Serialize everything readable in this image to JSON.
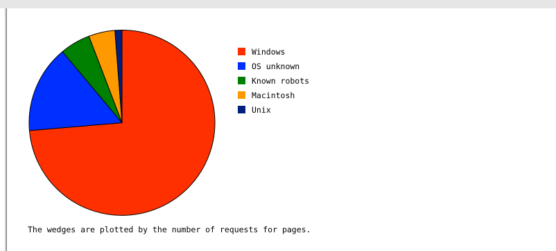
{
  "chart_data": {
    "type": "pie",
    "categories": [
      "Windows",
      "OS unknown",
      "Known robots",
      "Macintosh",
      "Unix"
    ],
    "values": [
      72.4,
      15.0,
      5.2,
      4.5,
      1.2
    ],
    "colors": [
      "#ff3000",
      "#0030ff",
      "#008000",
      "#ff9900",
      "#002080"
    ],
    "legend_position": "right",
    "start": "top",
    "direction": "clockwise"
  },
  "caption": "The wedges are plotted by the number of requests for pages."
}
